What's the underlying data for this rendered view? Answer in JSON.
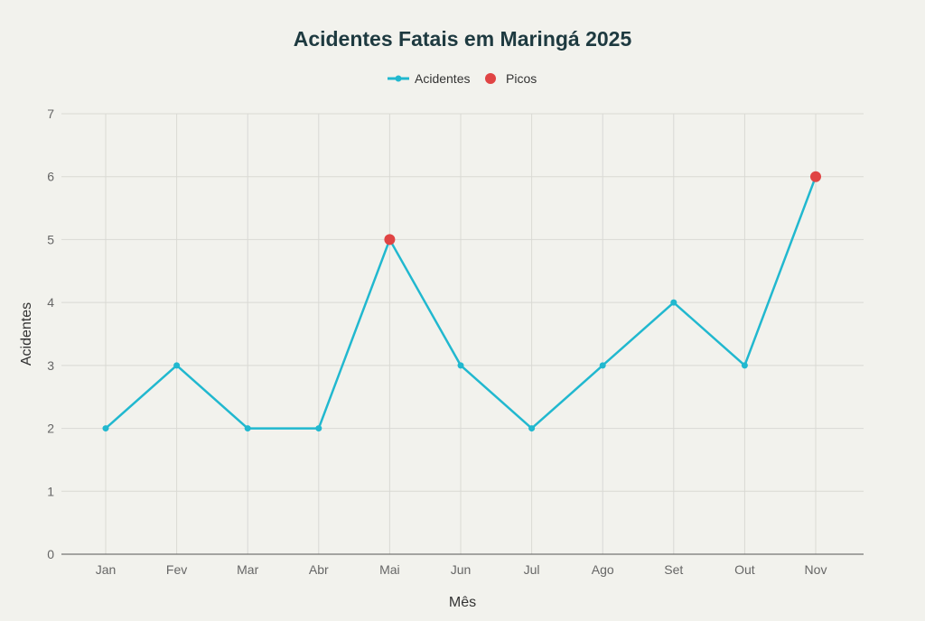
{
  "chart_data": {
    "type": "line",
    "title": "Acidentes Fatais em Maringá 2025",
    "xlabel": "Mês",
    "ylabel": "Acidentes",
    "categories": [
      "Jan",
      "Fev",
      "Mar",
      "Abr",
      "Mai",
      "Jun",
      "Jul",
      "Ago",
      "Set",
      "Out",
      "Nov"
    ],
    "series": [
      {
        "name": "Acidentes",
        "values": [
          2,
          3,
          2,
          2,
          5,
          3,
          2,
          3,
          4,
          3,
          6
        ],
        "color": "#21b8cf"
      }
    ],
    "peaks": {
      "name": "Picos",
      "categories": [
        "Mai",
        "Nov"
      ],
      "values": [
        5,
        6
      ],
      "color": "#e04444"
    },
    "ylim": [
      0,
      7
    ],
    "yticks": [
      0,
      1,
      2,
      3,
      4,
      5,
      6,
      7
    ],
    "grid": true,
    "legend": "top-center",
    "colors": {
      "background": "#f2f2ed",
      "grid": "#d9d9d4",
      "title": "#1e3a40",
      "tick": "#666666"
    }
  }
}
